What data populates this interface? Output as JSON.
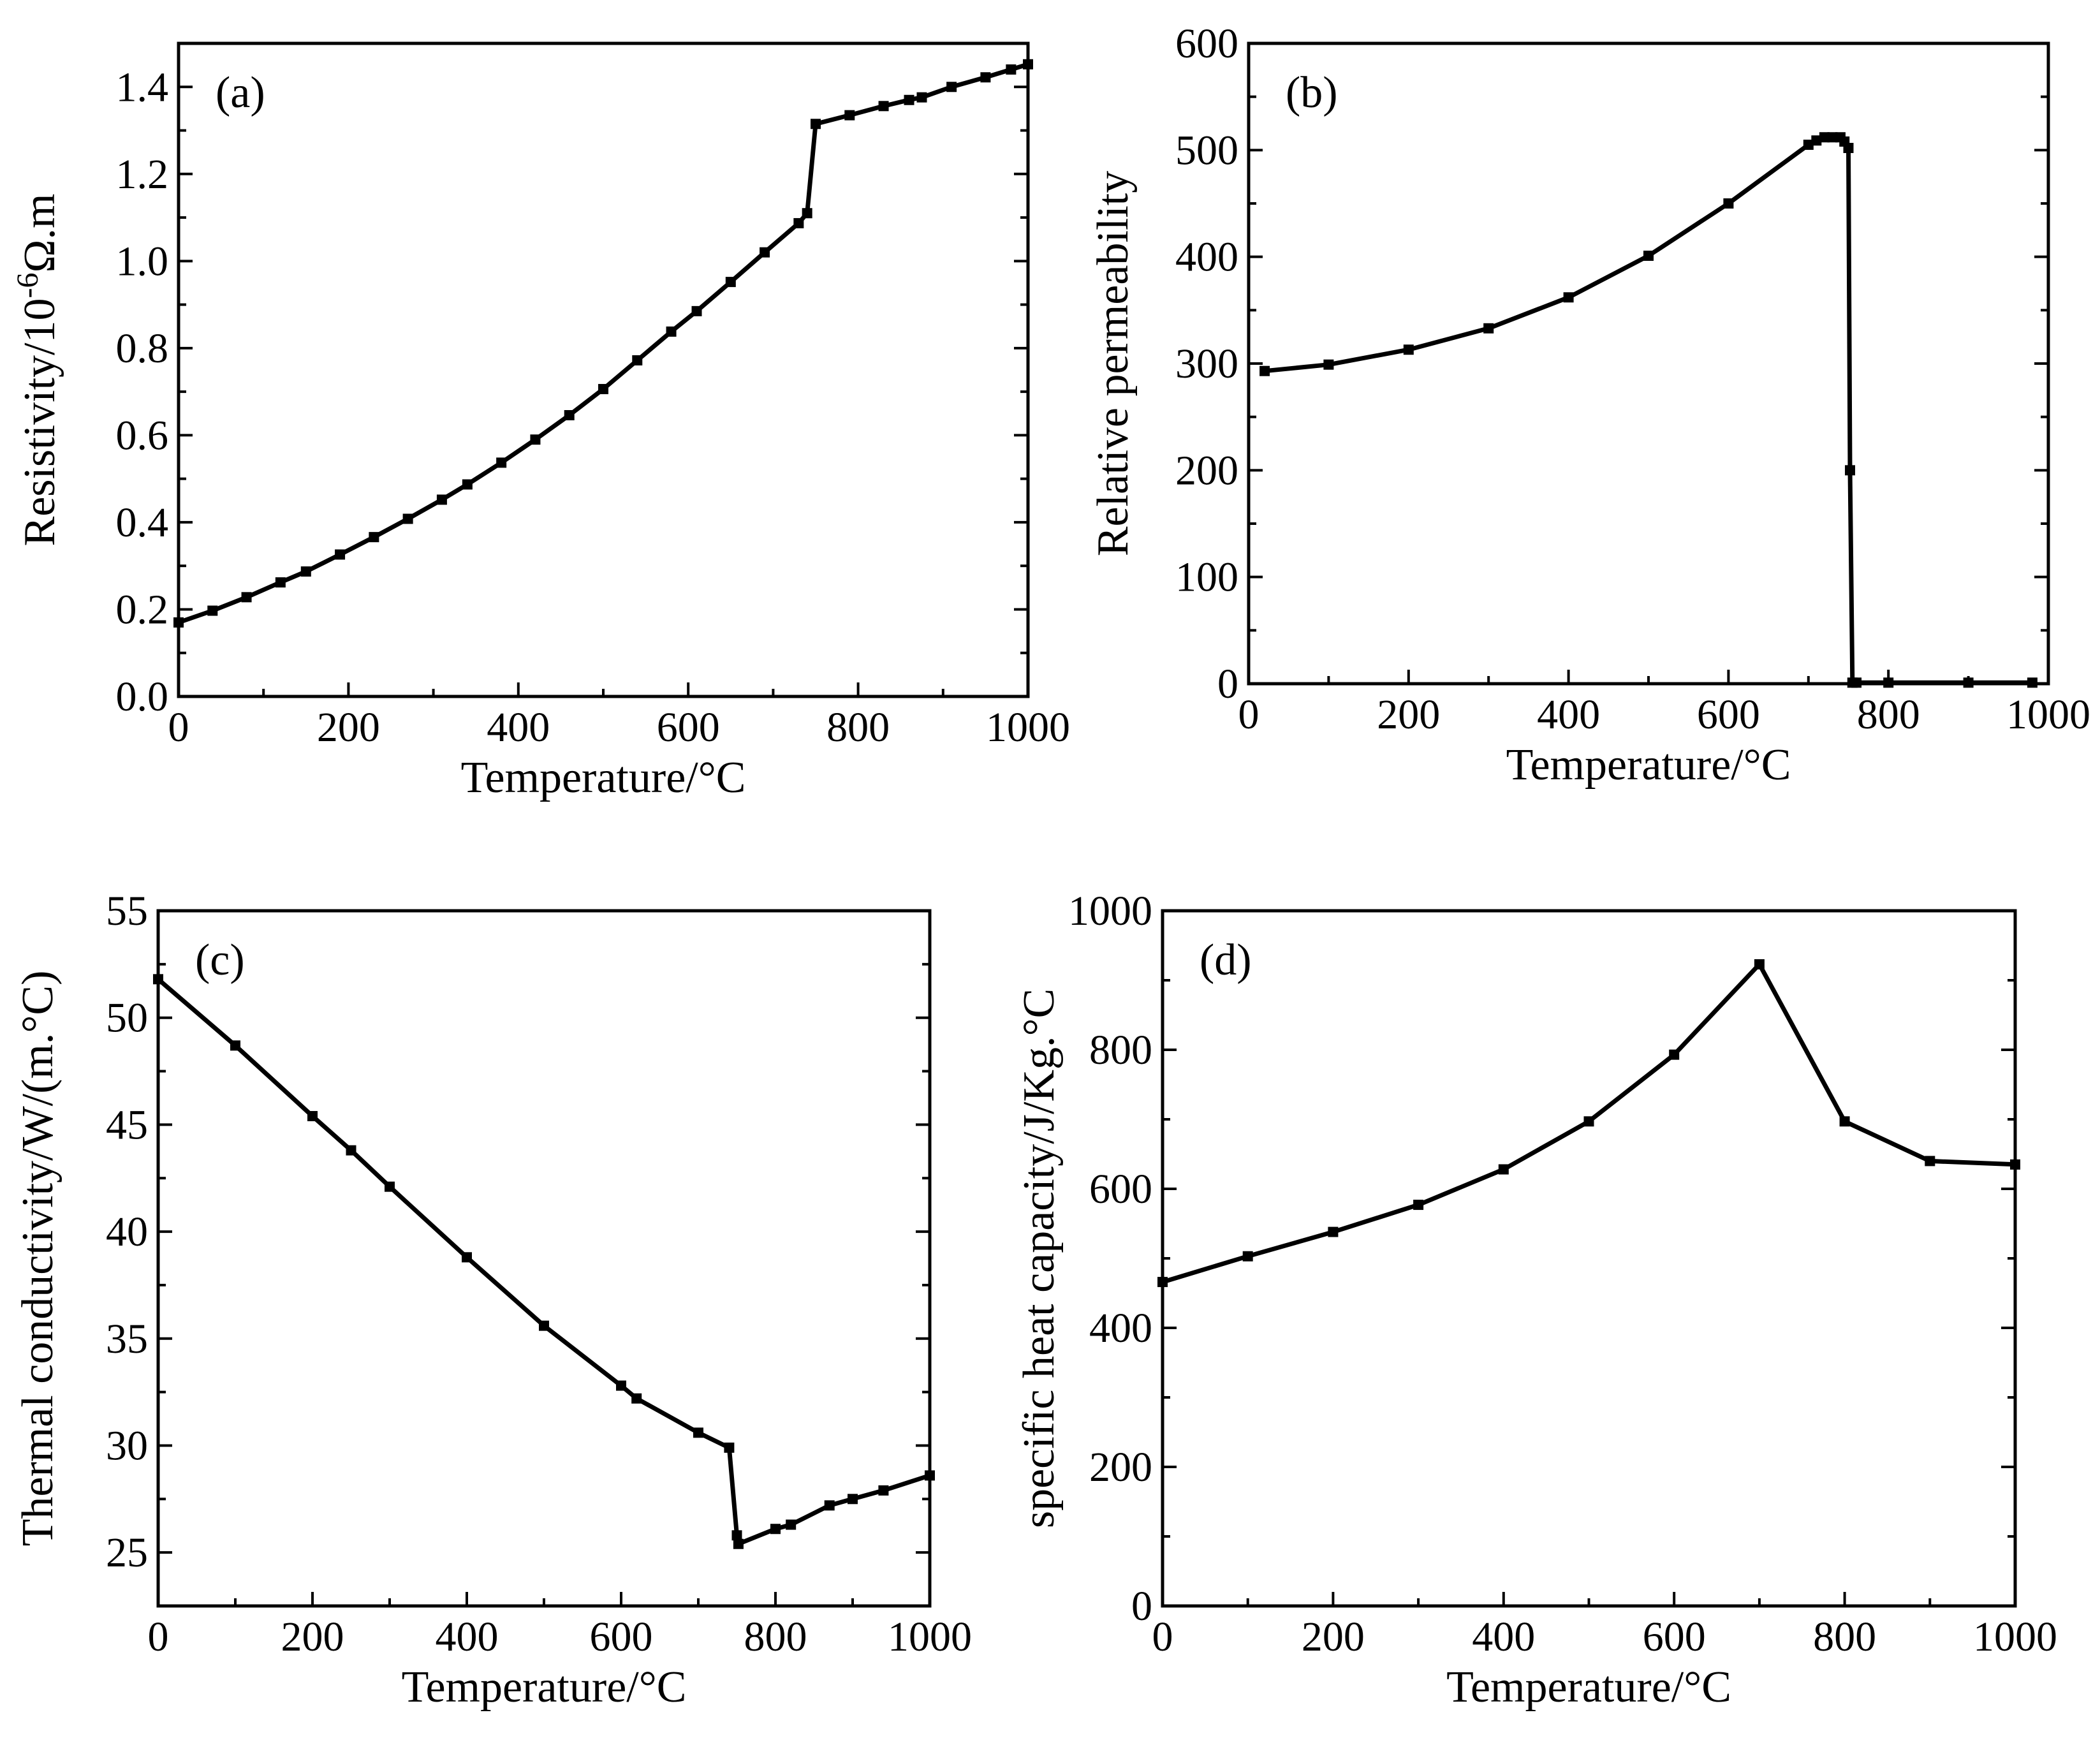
{
  "chart_data": [
    {
      "id": "a",
      "type": "line",
      "panel_label": "(a)",
      "xlabel": "Temperature/°C",
      "ylabel": "Resistivity/10",
      "ylabel_sup": "-6",
      "ylabel_tail": "Ω.m",
      "xlim": [
        0,
        1000
      ],
      "ylim": [
        0.0,
        1.5
      ],
      "xticks": [
        0,
        200,
        400,
        600,
        800,
        1000
      ],
      "yticks": [
        0.0,
        0.2,
        0.4,
        0.6,
        0.8,
        1.0,
        1.2,
        1.4
      ],
      "xtick_labels": [
        "0",
        "200",
        "400",
        "600",
        "800",
        "1000"
      ],
      "ytick_labels": [
        "0.0",
        "0.2",
        "0.4",
        "0.6",
        "0.8",
        "1.0",
        "1.2",
        "1.4"
      ],
      "x": [
        0,
        40,
        80,
        120,
        150,
        190,
        230,
        270,
        310,
        340,
        380,
        420,
        460,
        500,
        540,
        580,
        610,
        650,
        690,
        730,
        740,
        750,
        790,
        830,
        860,
        875,
        910,
        950,
        980,
        1000
      ],
      "y": [
        0.17,
        0.197,
        0.228,
        0.262,
        0.287,
        0.326,
        0.366,
        0.408,
        0.452,
        0.487,
        0.537,
        0.59,
        0.646,
        0.706,
        0.772,
        0.838,
        0.885,
        0.952,
        1.02,
        1.087,
        1.11,
        1.315,
        1.335,
        1.356,
        1.37,
        1.376,
        1.4,
        1.422,
        1.44,
        1.452
      ]
    },
    {
      "id": "b",
      "type": "line",
      "panel_label": "(b)",
      "xlabel": "Temperature/°C",
      "ylabel": "Relative permeability",
      "xlim": [
        0,
        1000
      ],
      "ylim": [
        0,
        600
      ],
      "xticks": [
        0,
        200,
        400,
        600,
        800,
        1000
      ],
      "yticks": [
        0,
        100,
        200,
        300,
        400,
        500,
        600
      ],
      "xtick_labels": [
        "0",
        "200",
        "400",
        "600",
        "800",
        "1000"
      ],
      "ytick_labels": [
        "0",
        "100",
        "200",
        "300",
        "400",
        "500",
        "600"
      ],
      "x": [
        20,
        100,
        200,
        300,
        400,
        500,
        600,
        700,
        710,
        720,
        730,
        740,
        745,
        750,
        752,
        755,
        760,
        800,
        900,
        980
      ],
      "y": [
        293,
        299,
        313,
        333,
        362,
        401,
        450,
        505,
        509,
        512,
        512,
        512,
        508,
        502,
        200,
        1,
        1,
        1,
        1,
        1
      ]
    },
    {
      "id": "c",
      "type": "line",
      "panel_label": "(c)",
      "xlabel": "Temperature/°C",
      "ylabel": "Thermal conductivity/W/(m.°C)",
      "xlim": [
        0,
        1000
      ],
      "ylim": [
        22.5,
        55
      ],
      "xticks": [
        0,
        200,
        400,
        600,
        800,
        1000
      ],
      "yticks": [
        25,
        30,
        35,
        40,
        45,
        50,
        55
      ],
      "xtick_labels": [
        "0",
        "200",
        "400",
        "600",
        "800",
        "1000"
      ],
      "ytick_labels": [
        "25",
        "30",
        "35",
        "40",
        "45",
        "50",
        "55"
      ],
      "x": [
        0,
        100,
        200,
        250,
        300,
        400,
        500,
        600,
        620,
        700,
        740,
        750,
        752,
        800,
        820,
        870,
        900,
        940,
        1000
      ],
      "y": [
        51.8,
        48.7,
        45.4,
        43.8,
        42.1,
        38.8,
        35.6,
        32.8,
        32.2,
        30.6,
        29.9,
        25.8,
        25.4,
        26.1,
        26.3,
        27.2,
        27.5,
        27.9,
        28.6
      ]
    },
    {
      "id": "d",
      "type": "line",
      "panel_label": "(d)",
      "xlabel": "Temperature/°C",
      "ylabel": "specific heat capacity/J/Kg.°C",
      "xlim": [
        0,
        1000
      ],
      "ylim": [
        0,
        1000
      ],
      "xticks": [
        0,
        200,
        400,
        600,
        800,
        1000
      ],
      "yticks": [
        0,
        200,
        400,
        600,
        800,
        1000
      ],
      "xtick_labels": [
        "0",
        "200",
        "400",
        "600",
        "800",
        "1000"
      ],
      "ytick_labels": [
        "0",
        "200",
        "400",
        "600",
        "800",
        "1000"
      ],
      "x": [
        0,
        100,
        200,
        300,
        400,
        500,
        600,
        700,
        800,
        900,
        1000
      ],
      "y": [
        466,
        503,
        538,
        577,
        628,
        697,
        793,
        923,
        697,
        640,
        635
      ]
    }
  ]
}
